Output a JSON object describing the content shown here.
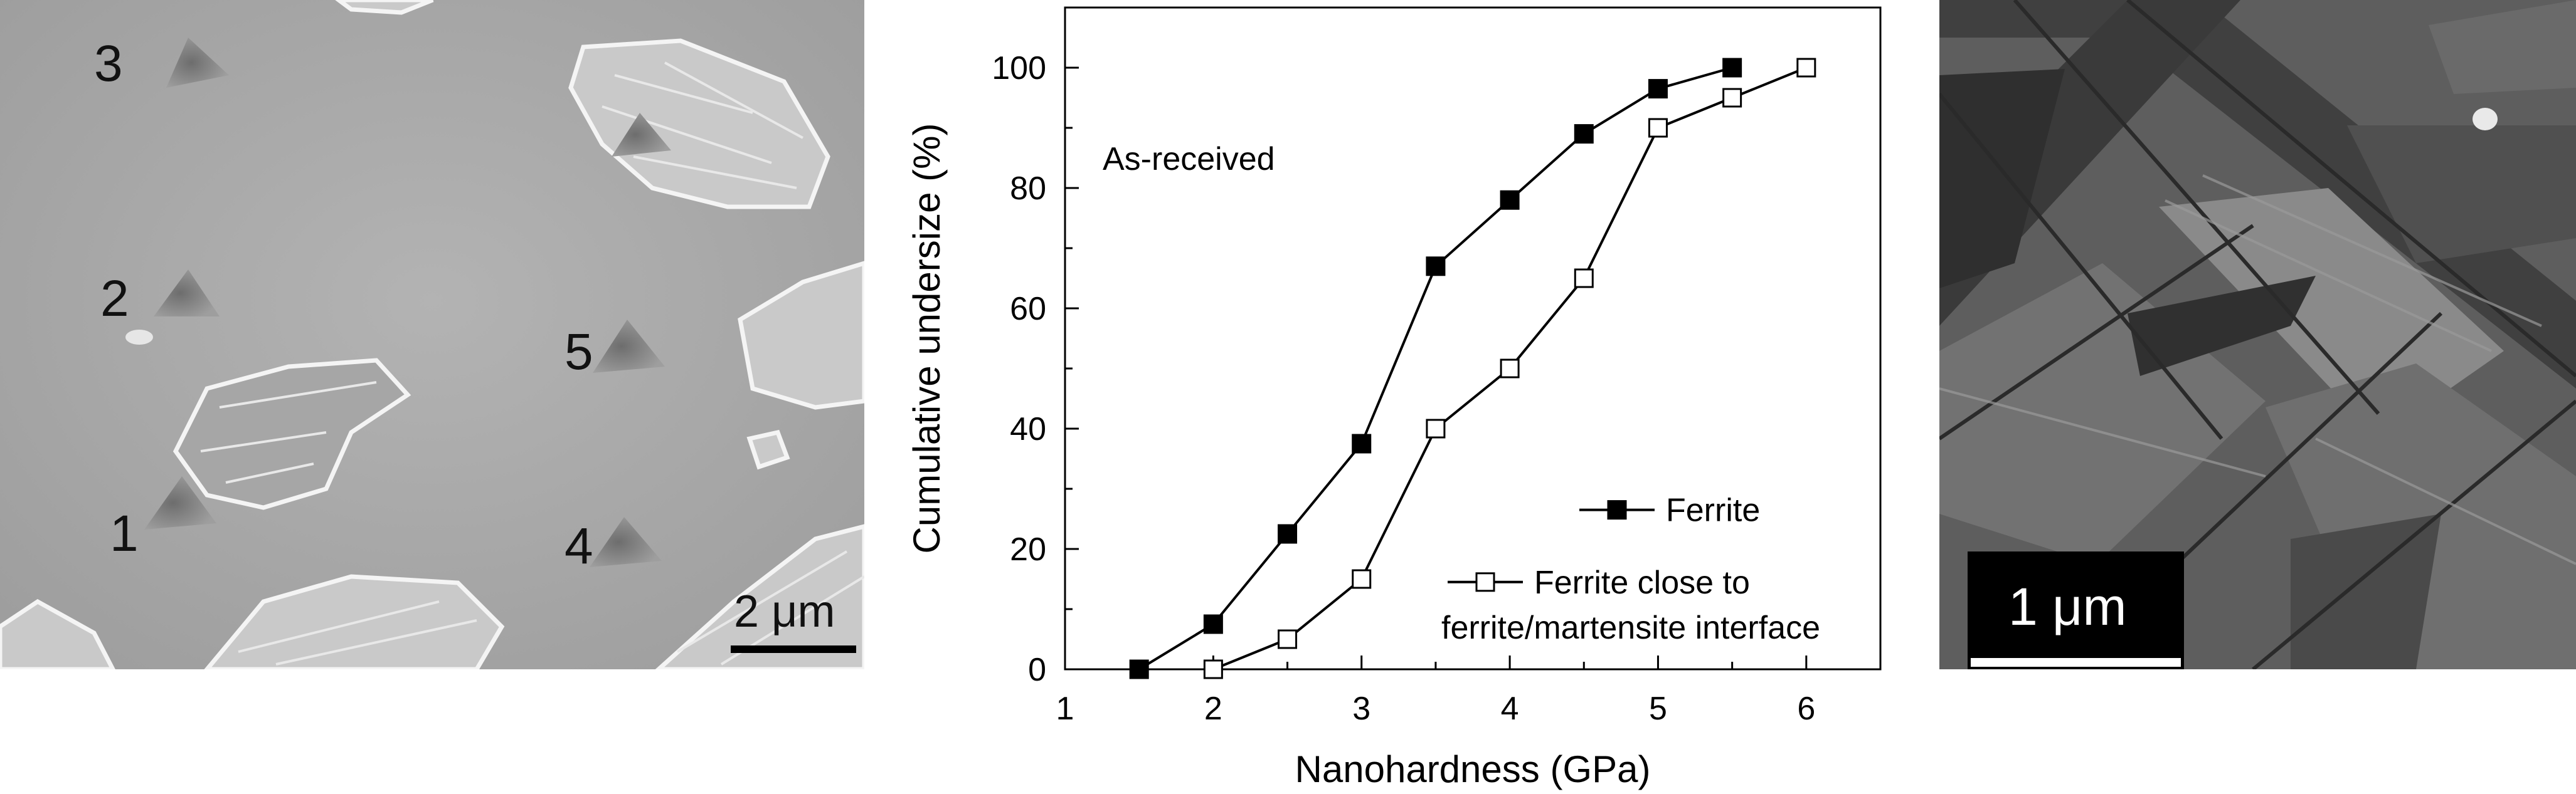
{
  "sem_micrograph": {
    "indent_labels": [
      "1",
      "2",
      "3",
      "4",
      "5"
    ],
    "scale_bar_label": "2 μm"
  },
  "tem_micrograph": {
    "scale_bar_label": "1 μm"
  },
  "chart_data": {
    "type": "line",
    "title": "",
    "annotation": "As-received",
    "xlabel": "Nanohardness (GPa)",
    "ylabel": "Cumulative undersize (%)",
    "xlim": [
      1,
      6.5
    ],
    "ylim": [
      0,
      110
    ],
    "xticks": [
      1,
      2,
      3,
      4,
      5,
      6
    ],
    "yticks": [
      0,
      20,
      40,
      60,
      80,
      100
    ],
    "grid": false,
    "legend_placement": "bottom-right",
    "series": [
      {
        "name": "Ferrite",
        "marker": "filled-square",
        "color": "#000000",
        "x": [
          1.5,
          2.0,
          2.5,
          3.0,
          3.5,
          4.0,
          4.5,
          5.0,
          5.5
        ],
        "y": [
          0,
          7.5,
          22.5,
          37.5,
          67,
          78,
          89,
          96.5,
          100
        ]
      },
      {
        "name": "Ferrite close to ferrite/martensite interface",
        "legend_lines": [
          "Ferrite close to",
          "ferrite/martensite interface"
        ],
        "marker": "open-square",
        "color": "#000000",
        "x": [
          2.0,
          2.5,
          3.0,
          3.5,
          4.0,
          4.5,
          5.0,
          5.5,
          6.0
        ],
        "y": [
          0,
          5,
          15,
          40,
          50,
          65,
          90,
          95,
          100
        ]
      }
    ]
  }
}
